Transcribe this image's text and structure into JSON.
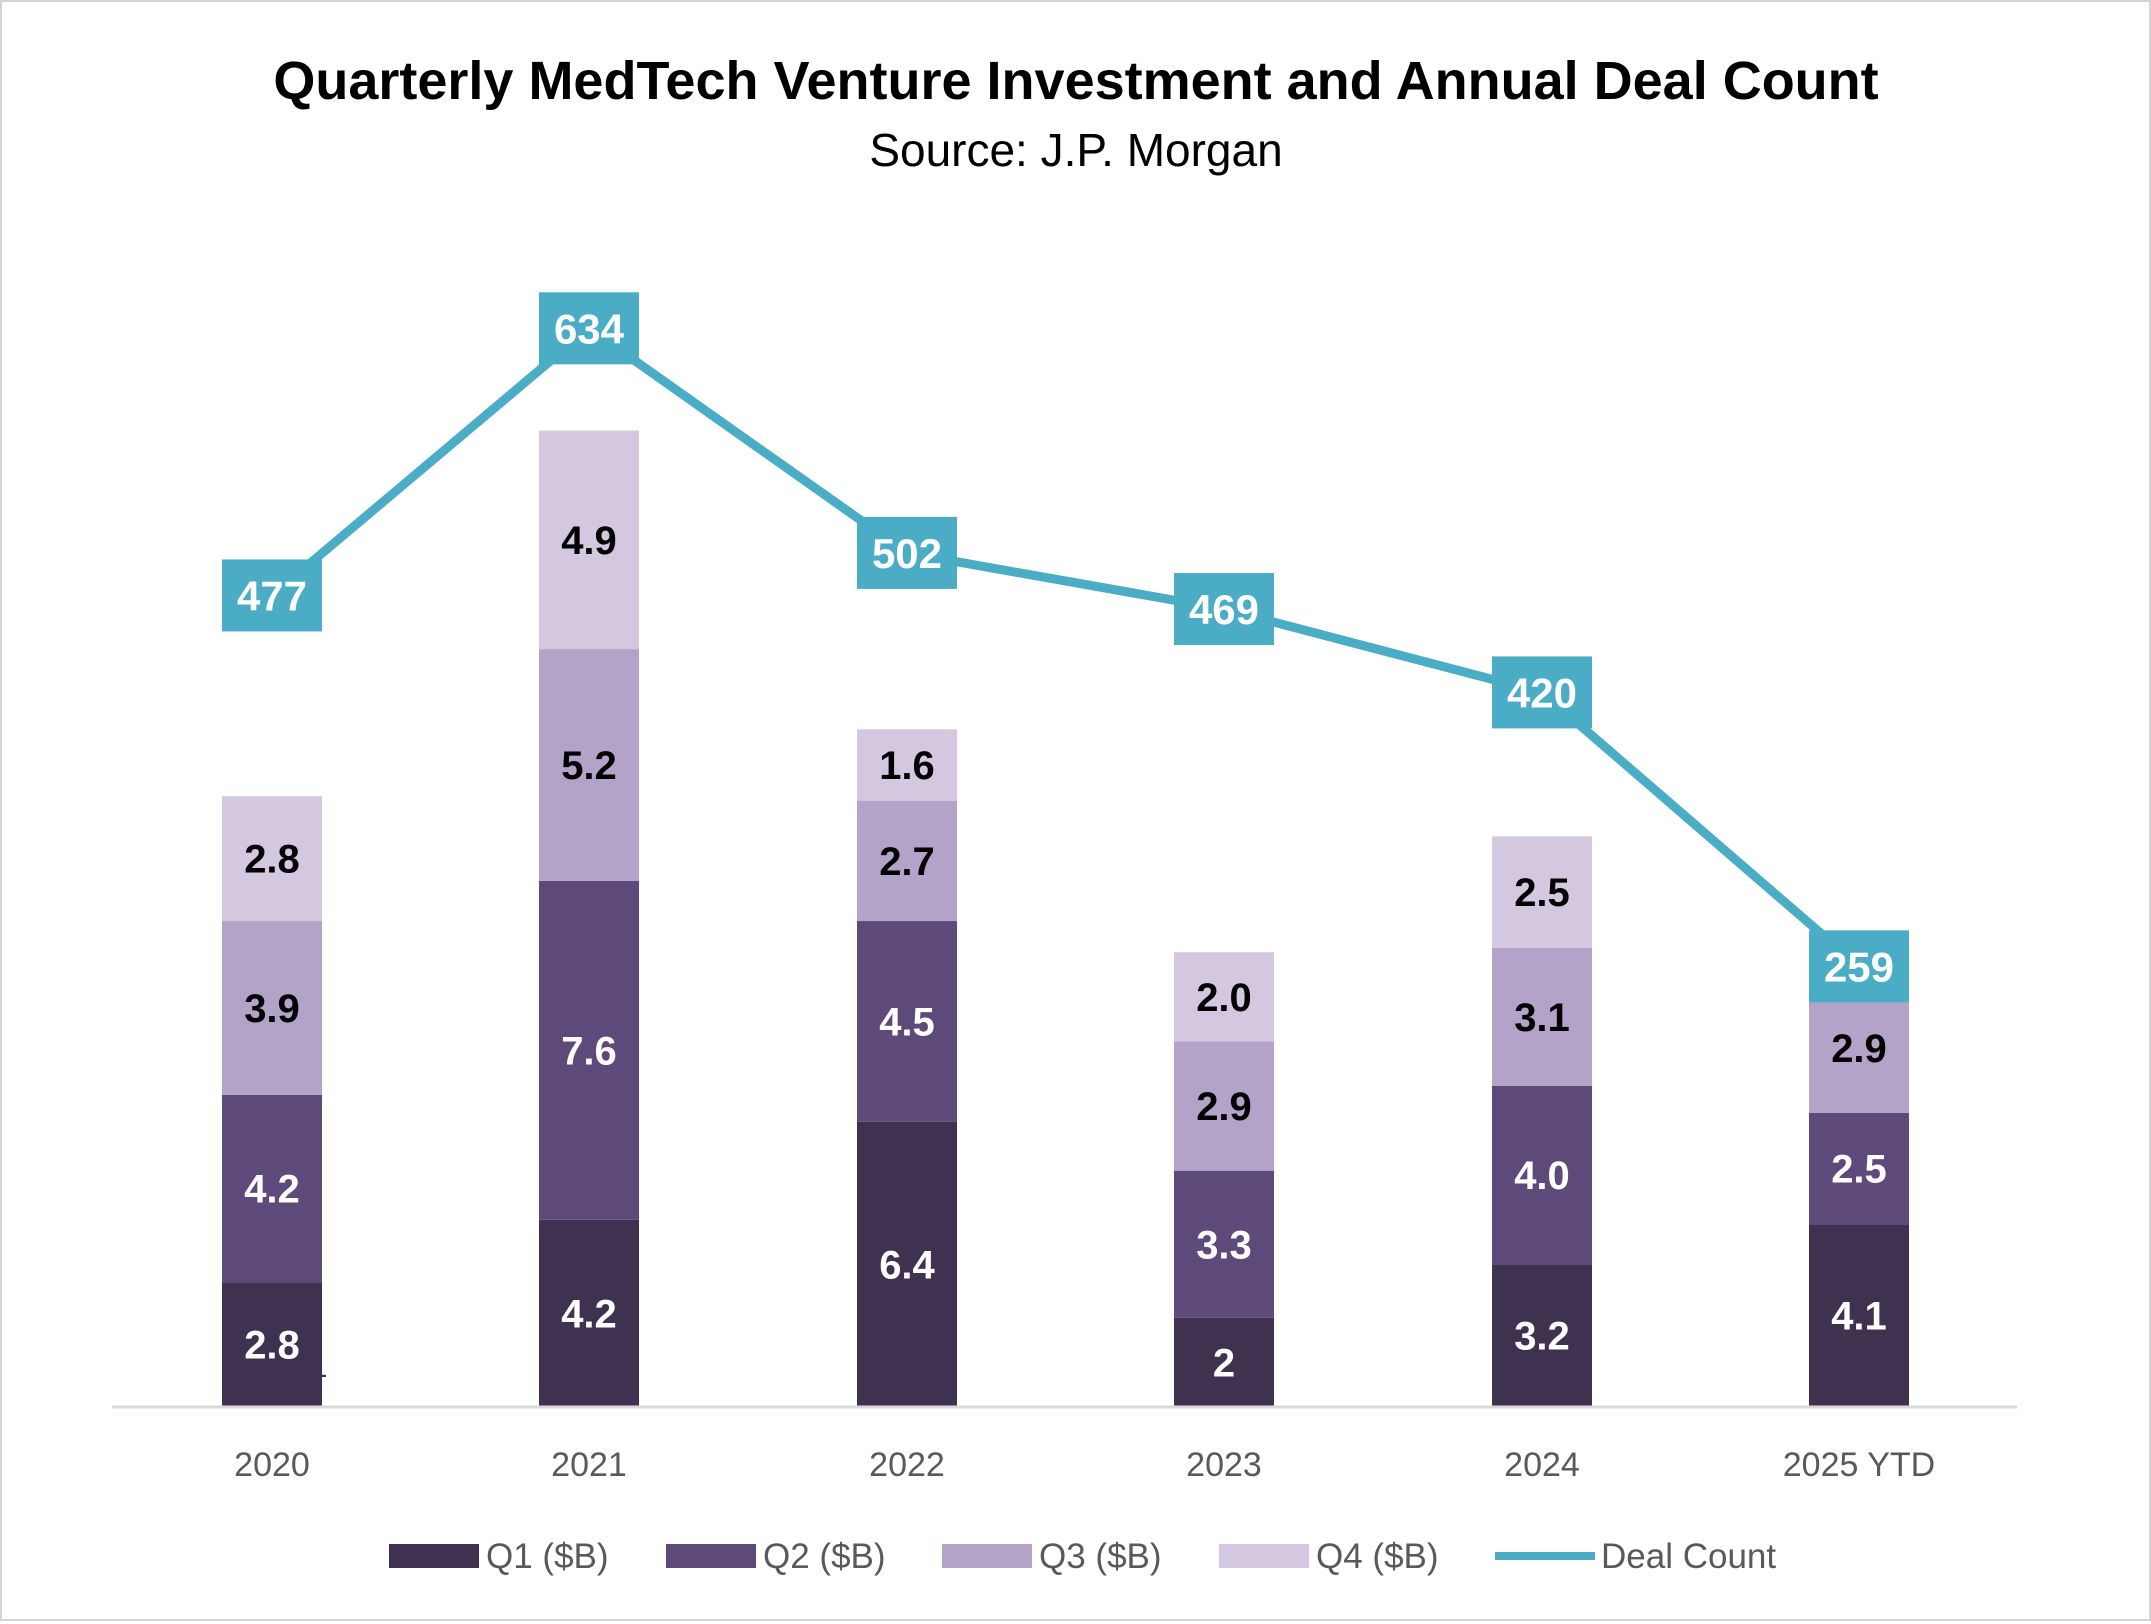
{
  "chart_data": {
    "type": "bar",
    "subtype": "stacked-bar-with-line",
    "title": "Quarterly MedTech Venture Investment and Annual Deal Count",
    "subtitle": "Source: J.P. Morgan",
    "categories": [
      "2020",
      "2021",
      "2022",
      "2023",
      "2024",
      "2025 YTD"
    ],
    "series": [
      {
        "name": "Q1 ($B)",
        "type": "bar",
        "color": "#3f3150",
        "label_color": "#ffffff",
        "values": [
          2.8,
          4.2,
          6.4,
          2,
          3.2,
          4.1
        ],
        "labels": [
          "2.8",
          "4.2",
          "6.4",
          "2",
          "3.2",
          "4.1"
        ]
      },
      {
        "name": "Q2 ($B)",
        "type": "bar",
        "color": "#5e4a7a",
        "label_color": "#ffffff",
        "values": [
          4.2,
          7.6,
          4.5,
          3.3,
          4.0,
          2.5
        ],
        "labels": [
          "4.2",
          "7.6",
          "4.5",
          "3.3",
          "4.0",
          "2.5"
        ]
      },
      {
        "name": "Q3 ($B)",
        "type": "bar",
        "color": "#b3a3c9",
        "label_color": "#000000",
        "values": [
          3.9,
          5.2,
          2.7,
          2.9,
          3.1,
          2.9
        ],
        "labels": [
          "3.9",
          "5.2",
          "2.7",
          "2.9",
          "3.1",
          "2.9"
        ]
      },
      {
        "name": "Q4 ($B)",
        "type": "bar",
        "color": "#d3c8e0",
        "label_color": "#000000",
        "values": [
          2.8,
          4.9,
          1.6,
          2.0,
          2.5,
          null
        ],
        "labels": [
          "2.8",
          "4.9",
          "1.6",
          "2.0",
          "2.5",
          null
        ]
      },
      {
        "name": "Deal Count",
        "type": "line",
        "color": "#4bacc6",
        "label_color": "#ffffff",
        "values": [
          477,
          634,
          502,
          469,
          420,
          259
        ],
        "labels": [
          "477",
          "634",
          "502",
          "469",
          "420",
          "259"
        ]
      }
    ],
    "stray_annotation": "1",
    "y_bar_range": [
      0,
      24
    ],
    "y_line_range": [
      0,
      720
    ],
    "legend": "bottom",
    "grid": false
  }
}
